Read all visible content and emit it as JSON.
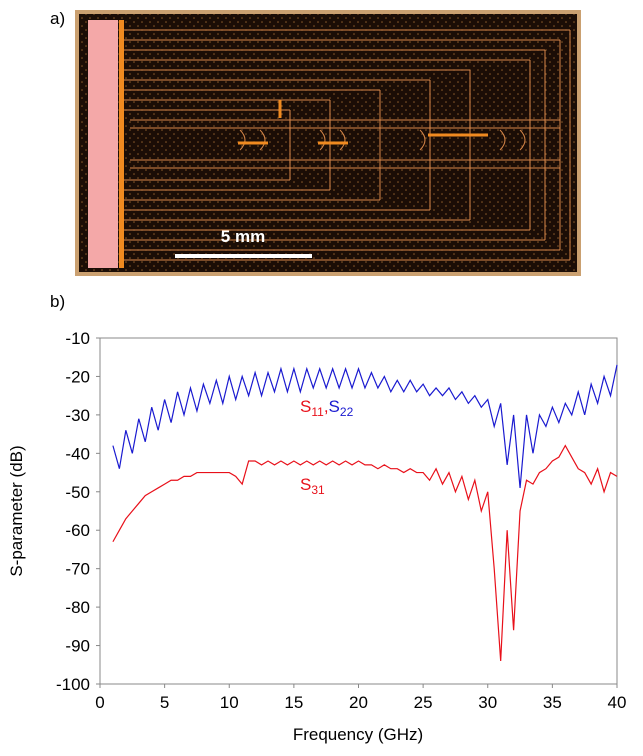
{
  "panel_a": {
    "label": "a)",
    "scale_bar": "5 mm"
  },
  "panel_b": {
    "label": "b)"
  },
  "chart_data": {
    "type": "line",
    "x_label": "Frequency (GHz)",
    "y_label": "S-parameter (dB)",
    "xlim": [
      0,
      40
    ],
    "xticks": [
      0,
      5,
      10,
      15,
      20,
      25,
      30,
      35,
      40
    ],
    "ylim": [
      -100,
      -10
    ],
    "yticks": [
      -100,
      -90,
      -80,
      -70,
      -60,
      -50,
      -40,
      -30,
      -20,
      -10
    ],
    "grid": false,
    "x": [
      1,
      1.5,
      2,
      2.5,
      3,
      3.5,
      4,
      4.5,
      5,
      5.5,
      6,
      6.5,
      7,
      7.5,
      8,
      8.5,
      9,
      9.5,
      10,
      10.5,
      11,
      11.5,
      12,
      12.5,
      13,
      13.5,
      14,
      14.5,
      15,
      15.5,
      16,
      16.5,
      17,
      17.5,
      18,
      18.5,
      19,
      19.5,
      20,
      20.5,
      21,
      21.5,
      22,
      22.5,
      23,
      23.5,
      24,
      24.5,
      25,
      25.5,
      26,
      26.5,
      27,
      27.5,
      28,
      28.5,
      29,
      29.5,
      30,
      30.5,
      31,
      31.5,
      32,
      32.5,
      33,
      33.5,
      34,
      34.5,
      35,
      35.5,
      36,
      36.5,
      37,
      37.5,
      38,
      38.5,
      39,
      39.5,
      40
    ],
    "series": [
      {
        "color": "#1a1ad0",
        "values": [
          -38,
          -44,
          -34,
          -40,
          -31,
          -37,
          -28,
          -34,
          -26,
          -32,
          -24,
          -30,
          -23,
          -29,
          -22,
          -27,
          -21,
          -27,
          -20,
          -26,
          -20,
          -25,
          -19,
          -25,
          -19,
          -24,
          -18,
          -24,
          -18,
          -24,
          -18,
          -23,
          -18,
          -23,
          -18,
          -23,
          -18,
          -23,
          -18,
          -23,
          -19,
          -23,
          -20,
          -24,
          -21,
          -24,
          -21,
          -24,
          -22,
          -25,
          -23,
          -25,
          -23,
          -26,
          -24,
          -27,
          -25,
          -28,
          -26,
          -33,
          -27,
          -43,
          -30,
          -49,
          -30,
          -40,
          -30,
          -33,
          -28,
          -32,
          -27,
          -30,
          -24,
          -30,
          -22,
          -27,
          -20,
          -25,
          -17
        ]
      },
      {
        "color": "#e8101a",
        "values": [
          -63,
          -60,
          -57,
          -55,
          -53,
          -51,
          -50,
          -49,
          -48,
          -47,
          -47,
          -46,
          -46,
          -45,
          -45,
          -45,
          -45,
          -45,
          -45,
          -46,
          -48,
          -42,
          -42,
          -43,
          -42,
          -43,
          -42,
          -43,
          -42,
          -43,
          -42,
          -43,
          -42,
          -43,
          -42,
          -43,
          -42,
          -43,
          -42,
          -43,
          -43,
          -44,
          -43,
          -44,
          -44,
          -45,
          -44,
          -45,
          -45,
          -47,
          -44,
          -48,
          -45,
          -50,
          -46,
          -52,
          -47,
          -55,
          -50,
          -70,
          -94,
          -60,
          -86,
          -55,
          -47,
          -48,
          -45,
          -44,
          -42,
          -41,
          -38,
          -41,
          -44,
          -45,
          -48,
          -44,
          -50,
          -45,
          -46
        ]
      }
    ],
    "annotations": [
      {
        "parts": [
          {
            "text": "S",
            "sub": "11",
            "color": "#e8101a"
          },
          {
            "text": ",",
            "color": "#e8101a"
          },
          {
            "text": "S",
            "sub": "22",
            "color": "#1a1ad0"
          }
        ]
      },
      {
        "parts": [
          {
            "text": "S",
            "sub": "31",
            "color": "#e8101a"
          }
        ]
      }
    ]
  }
}
